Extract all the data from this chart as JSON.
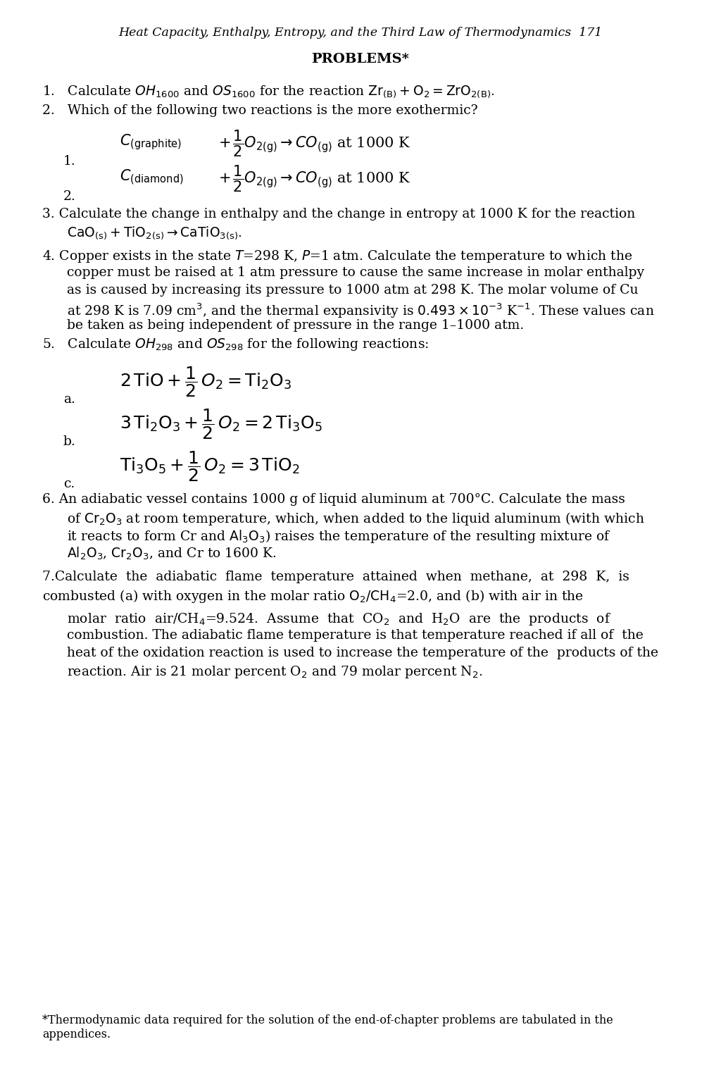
{
  "bg": "#ffffff",
  "header": "Heat Capacity, Enthalpy, Entropy, and the Third Law of Thermodynamics  171",
  "section": "PROBLEMS*",
  "footnote": "*Thermodynamic data required for the solution of the end-of-chapter problems are tabulated in the\nappendices."
}
